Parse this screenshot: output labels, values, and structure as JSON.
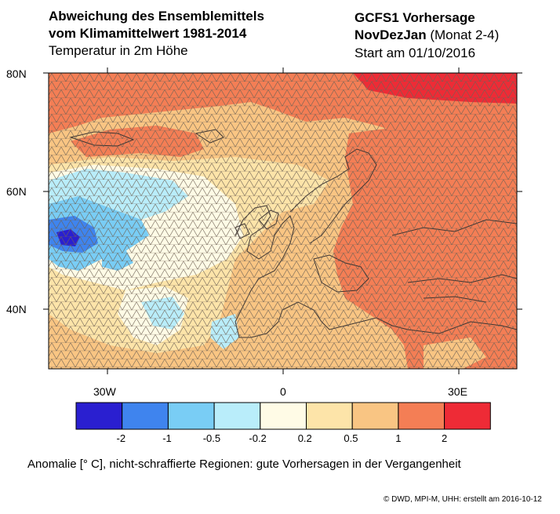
{
  "title": {
    "line1": "Abweichung des Ensemblemittels",
    "line2": "vom Klimamittelwert 1981-2014",
    "line3": "Temperatur in 2m Höhe"
  },
  "forecast": {
    "model": "GCFS1 Vorhersage",
    "season": "NovDezJan",
    "months": " (Monat 2-4)",
    "start": "Start am 01/10/2016"
  },
  "map": {
    "lat_labels": [
      "80N",
      "60N",
      "40N"
    ],
    "lon_labels": [
      "30W",
      "0",
      "30E"
    ],
    "colors": {
      "lt_m2": "#2a1fd0",
      "m2_m1": "#3f84ee",
      "m1_m05": "#79cdf5",
      "m05_m02": "#b9edfa",
      "m02_02": "#fffbe6",
      "02_05": "#fde4a9",
      "05_1": "#f9c583",
      "1_2": "#f47e55",
      "gt_2": "#ee2b36"
    }
  },
  "colorbar": {
    "labels": [
      "-2",
      "-1",
      "-0.5",
      "-0.2",
      "0.2",
      "0.5",
      "1",
      "2"
    ],
    "colors": [
      "#2a1fd0",
      "#3f84ee",
      "#79cdf5",
      "#b9edfa",
      "#fffbe6",
      "#fde4a9",
      "#f9c583",
      "#f47e55",
      "#ee2b36"
    ]
  },
  "caption": "Anomalie [° C], nicht-schraffierte Regionen: gute Vorhersagen in der Vergangenheit",
  "footer": "©  DWD, MPI-M, UHH: erstellt am 2016-10-12"
}
